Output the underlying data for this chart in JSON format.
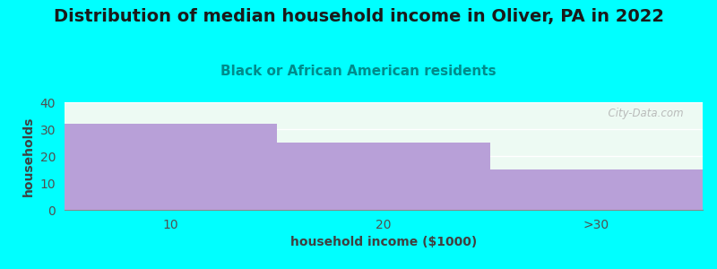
{
  "title": "Distribution of median household income in Oliver, PA in 2022",
  "subtitle": "Black or African American residents",
  "xlabel": "household income ($1000)",
  "ylabel": "households",
  "categories": [
    "10",
    "20",
    ">30"
  ],
  "values": [
    32,
    25,
    15
  ],
  "bar_color": "#b8a0d8",
  "background_color": "#00ffff",
  "plot_bg_color": "#edfaf3",
  "ylim": [
    0,
    40
  ],
  "yticks": [
    0,
    10,
    20,
    30,
    40
  ],
  "title_fontsize": 14,
  "subtitle_fontsize": 11,
  "label_fontsize": 10,
  "tick_fontsize": 10,
  "watermark": "  City-Data.com"
}
